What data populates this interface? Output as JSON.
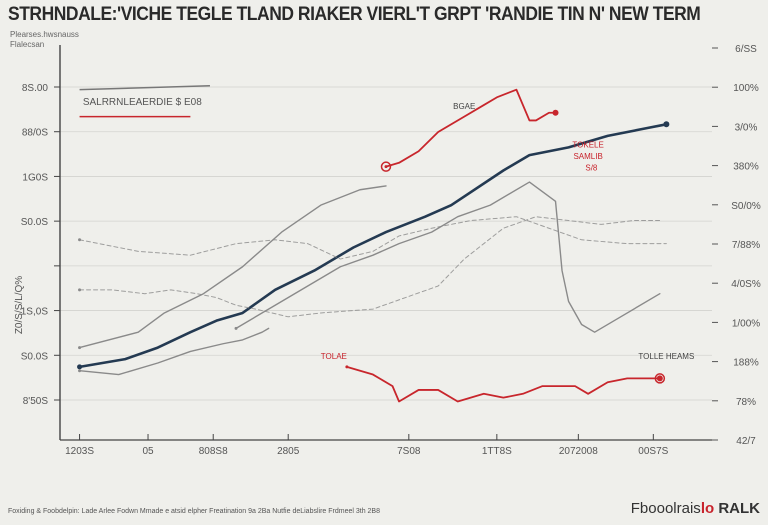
{
  "title": "STRHNDALE:'VICHE TEGLE TLAND RIAKER VIERL'T GRPT 'RANDIE TIN N' NEW TERMS",
  "subtitle": [
    "Plearses.hwsnauss",
    "Flalecsan"
  ],
  "footer": "Foxiding & Foobdelpin: Lade Arlee Fodwn Mmade e atsid elpher Freatination 9a 2Ba Nutfie deLiabslire Frdmeel 3th 2B8",
  "brand": {
    "prefix": "Fbooolrais",
    "mark": "lo",
    "suffix": "RALK"
  },
  "chart_data": {
    "type": "line",
    "title": "STRHNDALE:'VICHE TEGLE TLAND RIAKER VIERL'T GRPT 'RANDIE TIN N' NEW TERMS",
    "x_ticks": [
      "1203S",
      "05",
      "808S8",
      "2805",
      "7S08",
      "1TT8S",
      "2072008",
      "00S7S"
    ],
    "y_ticks_left": [
      "8S.00",
      "88/0S",
      "1G0S",
      "S0.0S",
      "",
      "1S,0S",
      "S0.0S",
      "8'50S"
    ],
    "y_ticks_right": [
      "6/SS",
      "100%",
      "3/0%",
      "380%",
      "S0/0%",
      "7/88%",
      "4/0S%",
      "1/00%",
      "188%",
      "78%",
      "42/7"
    ],
    "ylabel_left": "Z0/S/S/L/Q%",
    "ylim": [
      0,
      100
    ],
    "xlim": [
      0,
      100
    ],
    "legend_box_label": "SALRRNLEAERDIE $ E08",
    "annotations": [
      "BGAE",
      "TOKELE",
      "SAMLIB",
      "S/8",
      "TOLAE",
      "TOLLE HEAMS"
    ],
    "series": [
      {
        "color": "#243a52",
        "style": "solid",
        "x": [
          3,
          10,
          15,
          20,
          24,
          28,
          33,
          39,
          45,
          50,
          56,
          60,
          68,
          72,
          78,
          84,
          90,
          93
        ],
        "y": [
          19,
          21,
          24,
          28,
          31,
          33,
          39,
          44,
          50,
          54,
          58,
          61,
          70,
          74,
          76,
          79,
          81,
          82
        ]
      },
      {
        "color": "#c8262c",
        "style": "solid",
        "x": [
          50,
          52,
          55,
          58,
          62,
          65,
          67,
          70,
          72,
          73,
          75,
          76
        ],
        "y": [
          71,
          72,
          75,
          80,
          84,
          87,
          89,
          91,
          83,
          83,
          85,
          85
        ]
      },
      {
        "color": "#c8262c",
        "style": "solid",
        "x": [
          44,
          48,
          51,
          52,
          55,
          58,
          61,
          65,
          68,
          71,
          74,
          77,
          79,
          81,
          84,
          87,
          92
        ],
        "y": [
          19,
          17,
          14,
          10,
          13,
          13,
          10,
          12,
          11,
          12,
          14,
          14,
          14,
          12,
          15,
          16,
          16
        ]
      },
      {
        "color": "#8a8a8a",
        "style": "solid",
        "x": [
          3,
          12,
          16,
          22,
          28,
          34,
          40,
          46,
          50
        ],
        "y": [
          24,
          28,
          33,
          38,
          45,
          54,
          61,
          65,
          66
        ]
      },
      {
        "color": "#8a8a8a",
        "style": "solid",
        "x": [
          27,
          33,
          38,
          43,
          48,
          52,
          57,
          61,
          66,
          72,
          76,
          77,
          78,
          80,
          82,
          86,
          92
        ],
        "y": [
          29,
          35,
          40,
          45,
          48,
          51,
          54,
          58,
          61,
          67,
          62,
          44,
          36,
          30,
          28,
          32,
          38
        ]
      },
      {
        "color": "#8a8a8a",
        "style": "solid",
        "x": [
          3,
          9,
          15,
          20,
          25,
          28,
          31,
          32
        ],
        "y": [
          18,
          17,
          20,
          23,
          25,
          26,
          28,
          29
        ]
      },
      {
        "color": "#8a8a8a",
        "style": "dashed",
        "x": [
          3,
          12,
          20,
          27,
          33,
          38,
          43,
          48,
          52,
          57,
          63,
          70,
          75,
          80,
          87,
          93
        ],
        "y": [
          52,
          49,
          48,
          51,
          52,
          51,
          47,
          49,
          53,
          55,
          57,
          58,
          55,
          52,
          51,
          51
        ]
      },
      {
        "color": "#8a8a8a",
        "style": "dashed",
        "x": [
          3,
          8,
          13,
          17,
          21,
          24,
          27,
          30,
          35,
          40,
          48,
          53,
          58,
          62,
          68,
          73,
          78,
          83,
          88,
          92
        ],
        "y": [
          39,
          39,
          38,
          39,
          38,
          37,
          35,
          34,
          32,
          33,
          34,
          37,
          40,
          47,
          55,
          58,
          57,
          56,
          57,
          57
        ]
      }
    ]
  }
}
